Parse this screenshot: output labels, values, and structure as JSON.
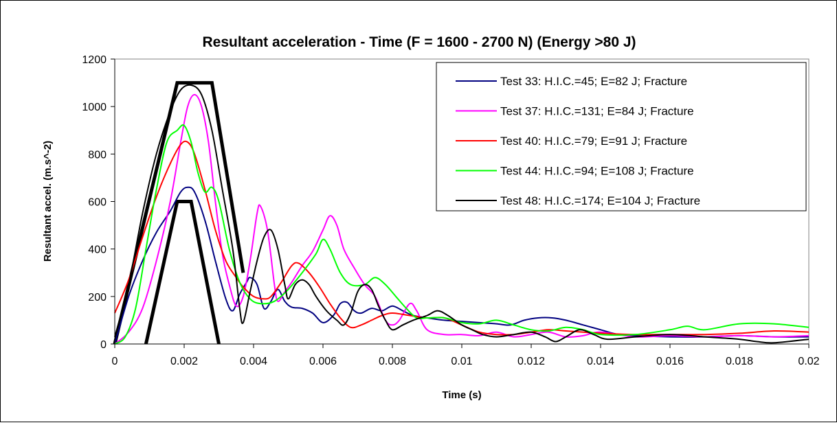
{
  "chart_data": {
    "type": "line",
    "title": "Resultant acceleration - Time (F = 1600 - 2700 N) (Energy >80 J)",
    "xlabel": "Time (s)",
    "ylabel": "Resultant accel. (m.s^-2)",
    "xlim": [
      0,
      0.02
    ],
    "ylim": [
      0,
      1200
    ],
    "x_ticks": [
      0,
      0.002,
      0.004,
      0.006,
      0.008,
      0.01,
      0.012,
      0.014,
      0.016,
      0.018,
      0.02
    ],
    "x_tick_labels": [
      "0",
      "0.002",
      "0.004",
      "0.006",
      "0.008",
      "0.01",
      "0.012",
      "0.014",
      "0.016",
      "0.018",
      "0.02"
    ],
    "y_ticks": [
      0,
      200,
      400,
      600,
      800,
      1000,
      1200
    ],
    "y_tick_labels": [
      "0",
      "200",
      "400",
      "600",
      "800",
      "1000",
      "1200"
    ],
    "grid": false,
    "legend_position": "top-right",
    "corridors": [
      {
        "color": "#000000",
        "points": [
          [
            0,
            0
          ],
          [
            0.0018,
            1100
          ],
          [
            0.0028,
            1100
          ],
          [
            0.0037,
            300
          ]
        ]
      },
      {
        "color": "#000000",
        "points": [
          [
            0.0009,
            0
          ],
          [
            0.0018,
            600
          ],
          [
            0.0022,
            600
          ],
          [
            0.003,
            0
          ]
        ]
      }
    ],
    "series": [
      {
        "name": "Test 33: H.I.C.=45; E=82 J; Fracture",
        "color": "#000080",
        "points": [
          [
            0,
            0
          ],
          [
            0.0004,
            200
          ],
          [
            0.0008,
            350
          ],
          [
            0.0012,
            470
          ],
          [
            0.0016,
            560
          ],
          [
            0.0019,
            640
          ],
          [
            0.0021,
            660
          ],
          [
            0.0023,
            640
          ],
          [
            0.0026,
            520
          ],
          [
            0.0029,
            350
          ],
          [
            0.0032,
            190
          ],
          [
            0.0034,
            140
          ],
          [
            0.0036,
            210
          ],
          [
            0.0038,
            260
          ],
          [
            0.0039,
            280
          ],
          [
            0.0041,
            250
          ],
          [
            0.0043,
            150
          ],
          [
            0.0045,
            180
          ],
          [
            0.0047,
            230
          ],
          [
            0.0049,
            180
          ],
          [
            0.0051,
            155
          ],
          [
            0.0054,
            150
          ],
          [
            0.0057,
            130
          ],
          [
            0.006,
            90
          ],
          [
            0.0063,
            120
          ],
          [
            0.0065,
            170
          ],
          [
            0.0067,
            175
          ],
          [
            0.0069,
            140
          ],
          [
            0.0071,
            130
          ],
          [
            0.0074,
            150
          ],
          [
            0.0077,
            140
          ],
          [
            0.008,
            160
          ],
          [
            0.0083,
            140
          ],
          [
            0.0086,
            120
          ],
          [
            0.009,
            110
          ],
          [
            0.0095,
            100
          ],
          [
            0.01,
            95
          ],
          [
            0.0105,
            90
          ],
          [
            0.011,
            85
          ],
          [
            0.0114,
            80
          ],
          [
            0.0118,
            100
          ],
          [
            0.0122,
            110
          ],
          [
            0.0126,
            110
          ],
          [
            0.013,
            100
          ],
          [
            0.0135,
            80
          ],
          [
            0.014,
            60
          ],
          [
            0.0145,
            40
          ],
          [
            0.015,
            35
          ],
          [
            0.016,
            30
          ],
          [
            0.017,
            30
          ],
          [
            0.018,
            35
          ],
          [
            0.019,
            30
          ],
          [
            0.02,
            30
          ]
        ]
      },
      {
        "name": "Test 37: H.I.C.=131; E=84 J; Fracture",
        "color": "#ff00ff",
        "points": [
          [
            0,
            0
          ],
          [
            0.0004,
            50
          ],
          [
            0.0008,
            150
          ],
          [
            0.0012,
            350
          ],
          [
            0.0016,
            600
          ],
          [
            0.0019,
            850
          ],
          [
            0.0021,
            1000
          ],
          [
            0.0023,
            1050
          ],
          [
            0.0025,
            1000
          ],
          [
            0.0027,
            850
          ],
          [
            0.0029,
            600
          ],
          [
            0.0031,
            380
          ],
          [
            0.0033,
            250
          ],
          [
            0.0035,
            160
          ],
          [
            0.0037,
            200
          ],
          [
            0.0039,
            350
          ],
          [
            0.0041,
            550
          ],
          [
            0.0042,
            580
          ],
          [
            0.0044,
            480
          ],
          [
            0.0046,
            250
          ],
          [
            0.0047,
            180
          ],
          [
            0.0049,
            220
          ],
          [
            0.0051,
            260
          ],
          [
            0.0054,
            330
          ],
          [
            0.0057,
            390
          ],
          [
            0.006,
            480
          ],
          [
            0.0062,
            540
          ],
          [
            0.0064,
            500
          ],
          [
            0.0066,
            400
          ],
          [
            0.0069,
            320
          ],
          [
            0.0072,
            250
          ],
          [
            0.0075,
            200
          ],
          [
            0.0078,
            100
          ],
          [
            0.008,
            80
          ],
          [
            0.0082,
            100
          ],
          [
            0.0085,
            170
          ],
          [
            0.0087,
            140
          ],
          [
            0.009,
            60
          ],
          [
            0.0095,
            40
          ],
          [
            0.01,
            40
          ],
          [
            0.0105,
            35
          ],
          [
            0.011,
            50
          ],
          [
            0.0115,
            30
          ],
          [
            0.012,
            40
          ],
          [
            0.0125,
            50
          ],
          [
            0.013,
            30
          ],
          [
            0.0135,
            35
          ],
          [
            0.014,
            50
          ],
          [
            0.015,
            30
          ],
          [
            0.016,
            35
          ],
          [
            0.017,
            30
          ],
          [
            0.018,
            35
          ],
          [
            0.019,
            30
          ],
          [
            0.02,
            35
          ]
        ]
      },
      {
        "name": "Test 40: H.I.C.=79; E=91 J; Fracture",
        "color": "#ff0000",
        "points": [
          [
            0,
            130
          ],
          [
            0.0004,
            270
          ],
          [
            0.0008,
            450
          ],
          [
            0.0012,
            620
          ],
          [
            0.0016,
            760
          ],
          [
            0.0019,
            840
          ],
          [
            0.0021,
            850
          ],
          [
            0.0023,
            800
          ],
          [
            0.0026,
            650
          ],
          [
            0.0029,
            480
          ],
          [
            0.0032,
            350
          ],
          [
            0.0035,
            280
          ],
          [
            0.0037,
            240
          ],
          [
            0.004,
            200
          ],
          [
            0.0043,
            190
          ],
          [
            0.0045,
            200
          ],
          [
            0.0048,
            260
          ],
          [
            0.0051,
            330
          ],
          [
            0.0053,
            340
          ],
          [
            0.0056,
            300
          ],
          [
            0.0059,
            240
          ],
          [
            0.0062,
            170
          ],
          [
            0.0065,
            110
          ],
          [
            0.0068,
            70
          ],
          [
            0.0071,
            80
          ],
          [
            0.0074,
            100
          ],
          [
            0.0077,
            120
          ],
          [
            0.008,
            130
          ],
          [
            0.0085,
            120
          ],
          [
            0.009,
            110
          ],
          [
            0.0095,
            110
          ],
          [
            0.01,
            80
          ],
          [
            0.0105,
            50
          ],
          [
            0.011,
            40
          ],
          [
            0.0115,
            40
          ],
          [
            0.012,
            50
          ],
          [
            0.0125,
            60
          ],
          [
            0.013,
            55
          ],
          [
            0.0135,
            50
          ],
          [
            0.014,
            45
          ],
          [
            0.015,
            40
          ],
          [
            0.016,
            40
          ],
          [
            0.017,
            40
          ],
          [
            0.018,
            45
          ],
          [
            0.019,
            55
          ],
          [
            0.02,
            50
          ]
        ]
      },
      {
        "name": "Test 44: H.I.C.=94; E=108 J; Fracture",
        "color": "#00ff00",
        "points": [
          [
            0,
            0
          ],
          [
            0.0003,
            30
          ],
          [
            0.0006,
            150
          ],
          [
            0.0009,
            400
          ],
          [
            0.0012,
            650
          ],
          [
            0.0015,
            850
          ],
          [
            0.0018,
            900
          ],
          [
            0.002,
            920
          ],
          [
            0.0022,
            850
          ],
          [
            0.0024,
            720
          ],
          [
            0.0026,
            640
          ],
          [
            0.0028,
            660
          ],
          [
            0.003,
            600
          ],
          [
            0.0033,
            400
          ],
          [
            0.0036,
            260
          ],
          [
            0.0039,
            190
          ],
          [
            0.0042,
            170
          ],
          [
            0.0046,
            180
          ],
          [
            0.005,
            230
          ],
          [
            0.0054,
            300
          ],
          [
            0.0058,
            380
          ],
          [
            0.006,
            440
          ],
          [
            0.0062,
            400
          ],
          [
            0.0065,
            300
          ],
          [
            0.0068,
            250
          ],
          [
            0.0072,
            250
          ],
          [
            0.0075,
            280
          ],
          [
            0.0078,
            250
          ],
          [
            0.0081,
            200
          ],
          [
            0.0084,
            150
          ],
          [
            0.0087,
            110
          ],
          [
            0.009,
            110
          ],
          [
            0.0095,
            110
          ],
          [
            0.01,
            90
          ],
          [
            0.0105,
            85
          ],
          [
            0.011,
            100
          ],
          [
            0.0115,
            80
          ],
          [
            0.012,
            60
          ],
          [
            0.0125,
            55
          ],
          [
            0.013,
            70
          ],
          [
            0.0135,
            60
          ],
          [
            0.014,
            40
          ],
          [
            0.015,
            40
          ],
          [
            0.016,
            60
          ],
          [
            0.0165,
            75
          ],
          [
            0.017,
            60
          ],
          [
            0.018,
            85
          ],
          [
            0.019,
            85
          ],
          [
            0.02,
            70
          ]
        ]
      },
      {
        "name": "Test 48: H.I.C.=174; E=104 J; Fracture",
        "color": "#000000",
        "points": [
          [
            0,
            30
          ],
          [
            0.0004,
            250
          ],
          [
            0.0008,
            550
          ],
          [
            0.0012,
            800
          ],
          [
            0.0016,
            980
          ],
          [
            0.0019,
            1070
          ],
          [
            0.0022,
            1090
          ],
          [
            0.0025,
            1050
          ],
          [
            0.0028,
            900
          ],
          [
            0.0031,
            650
          ],
          [
            0.0034,
            400
          ],
          [
            0.0036,
            150
          ],
          [
            0.0037,
            90
          ],
          [
            0.0039,
            220
          ],
          [
            0.0041,
            350
          ],
          [
            0.0043,
            450
          ],
          [
            0.0045,
            480
          ],
          [
            0.0047,
            400
          ],
          [
            0.0049,
            250
          ],
          [
            0.005,
            190
          ],
          [
            0.0052,
            250
          ],
          [
            0.0054,
            270
          ],
          [
            0.0056,
            250
          ],
          [
            0.0058,
            200
          ],
          [
            0.0061,
            140
          ],
          [
            0.0064,
            100
          ],
          [
            0.0066,
            80
          ],
          [
            0.0068,
            130
          ],
          [
            0.007,
            220
          ],
          [
            0.0072,
            250
          ],
          [
            0.0074,
            230
          ],
          [
            0.0076,
            160
          ],
          [
            0.0078,
            100
          ],
          [
            0.008,
            60
          ],
          [
            0.0083,
            80
          ],
          [
            0.0086,
            100
          ],
          [
            0.009,
            120
          ],
          [
            0.0093,
            140
          ],
          [
            0.0096,
            120
          ],
          [
            0.01,
            80
          ],
          [
            0.0103,
            60
          ],
          [
            0.0106,
            40
          ],
          [
            0.011,
            30
          ],
          [
            0.0115,
            40
          ],
          [
            0.012,
            50
          ],
          [
            0.0124,
            30
          ],
          [
            0.0127,
            10
          ],
          [
            0.013,
            30
          ],
          [
            0.0134,
            60
          ],
          [
            0.0138,
            40
          ],
          [
            0.0142,
            20
          ],
          [
            0.015,
            30
          ],
          [
            0.016,
            40
          ],
          [
            0.017,
            30
          ],
          [
            0.018,
            20
          ],
          [
            0.0185,
            10
          ],
          [
            0.019,
            5
          ],
          [
            0.02,
            20
          ]
        ]
      }
    ]
  }
}
